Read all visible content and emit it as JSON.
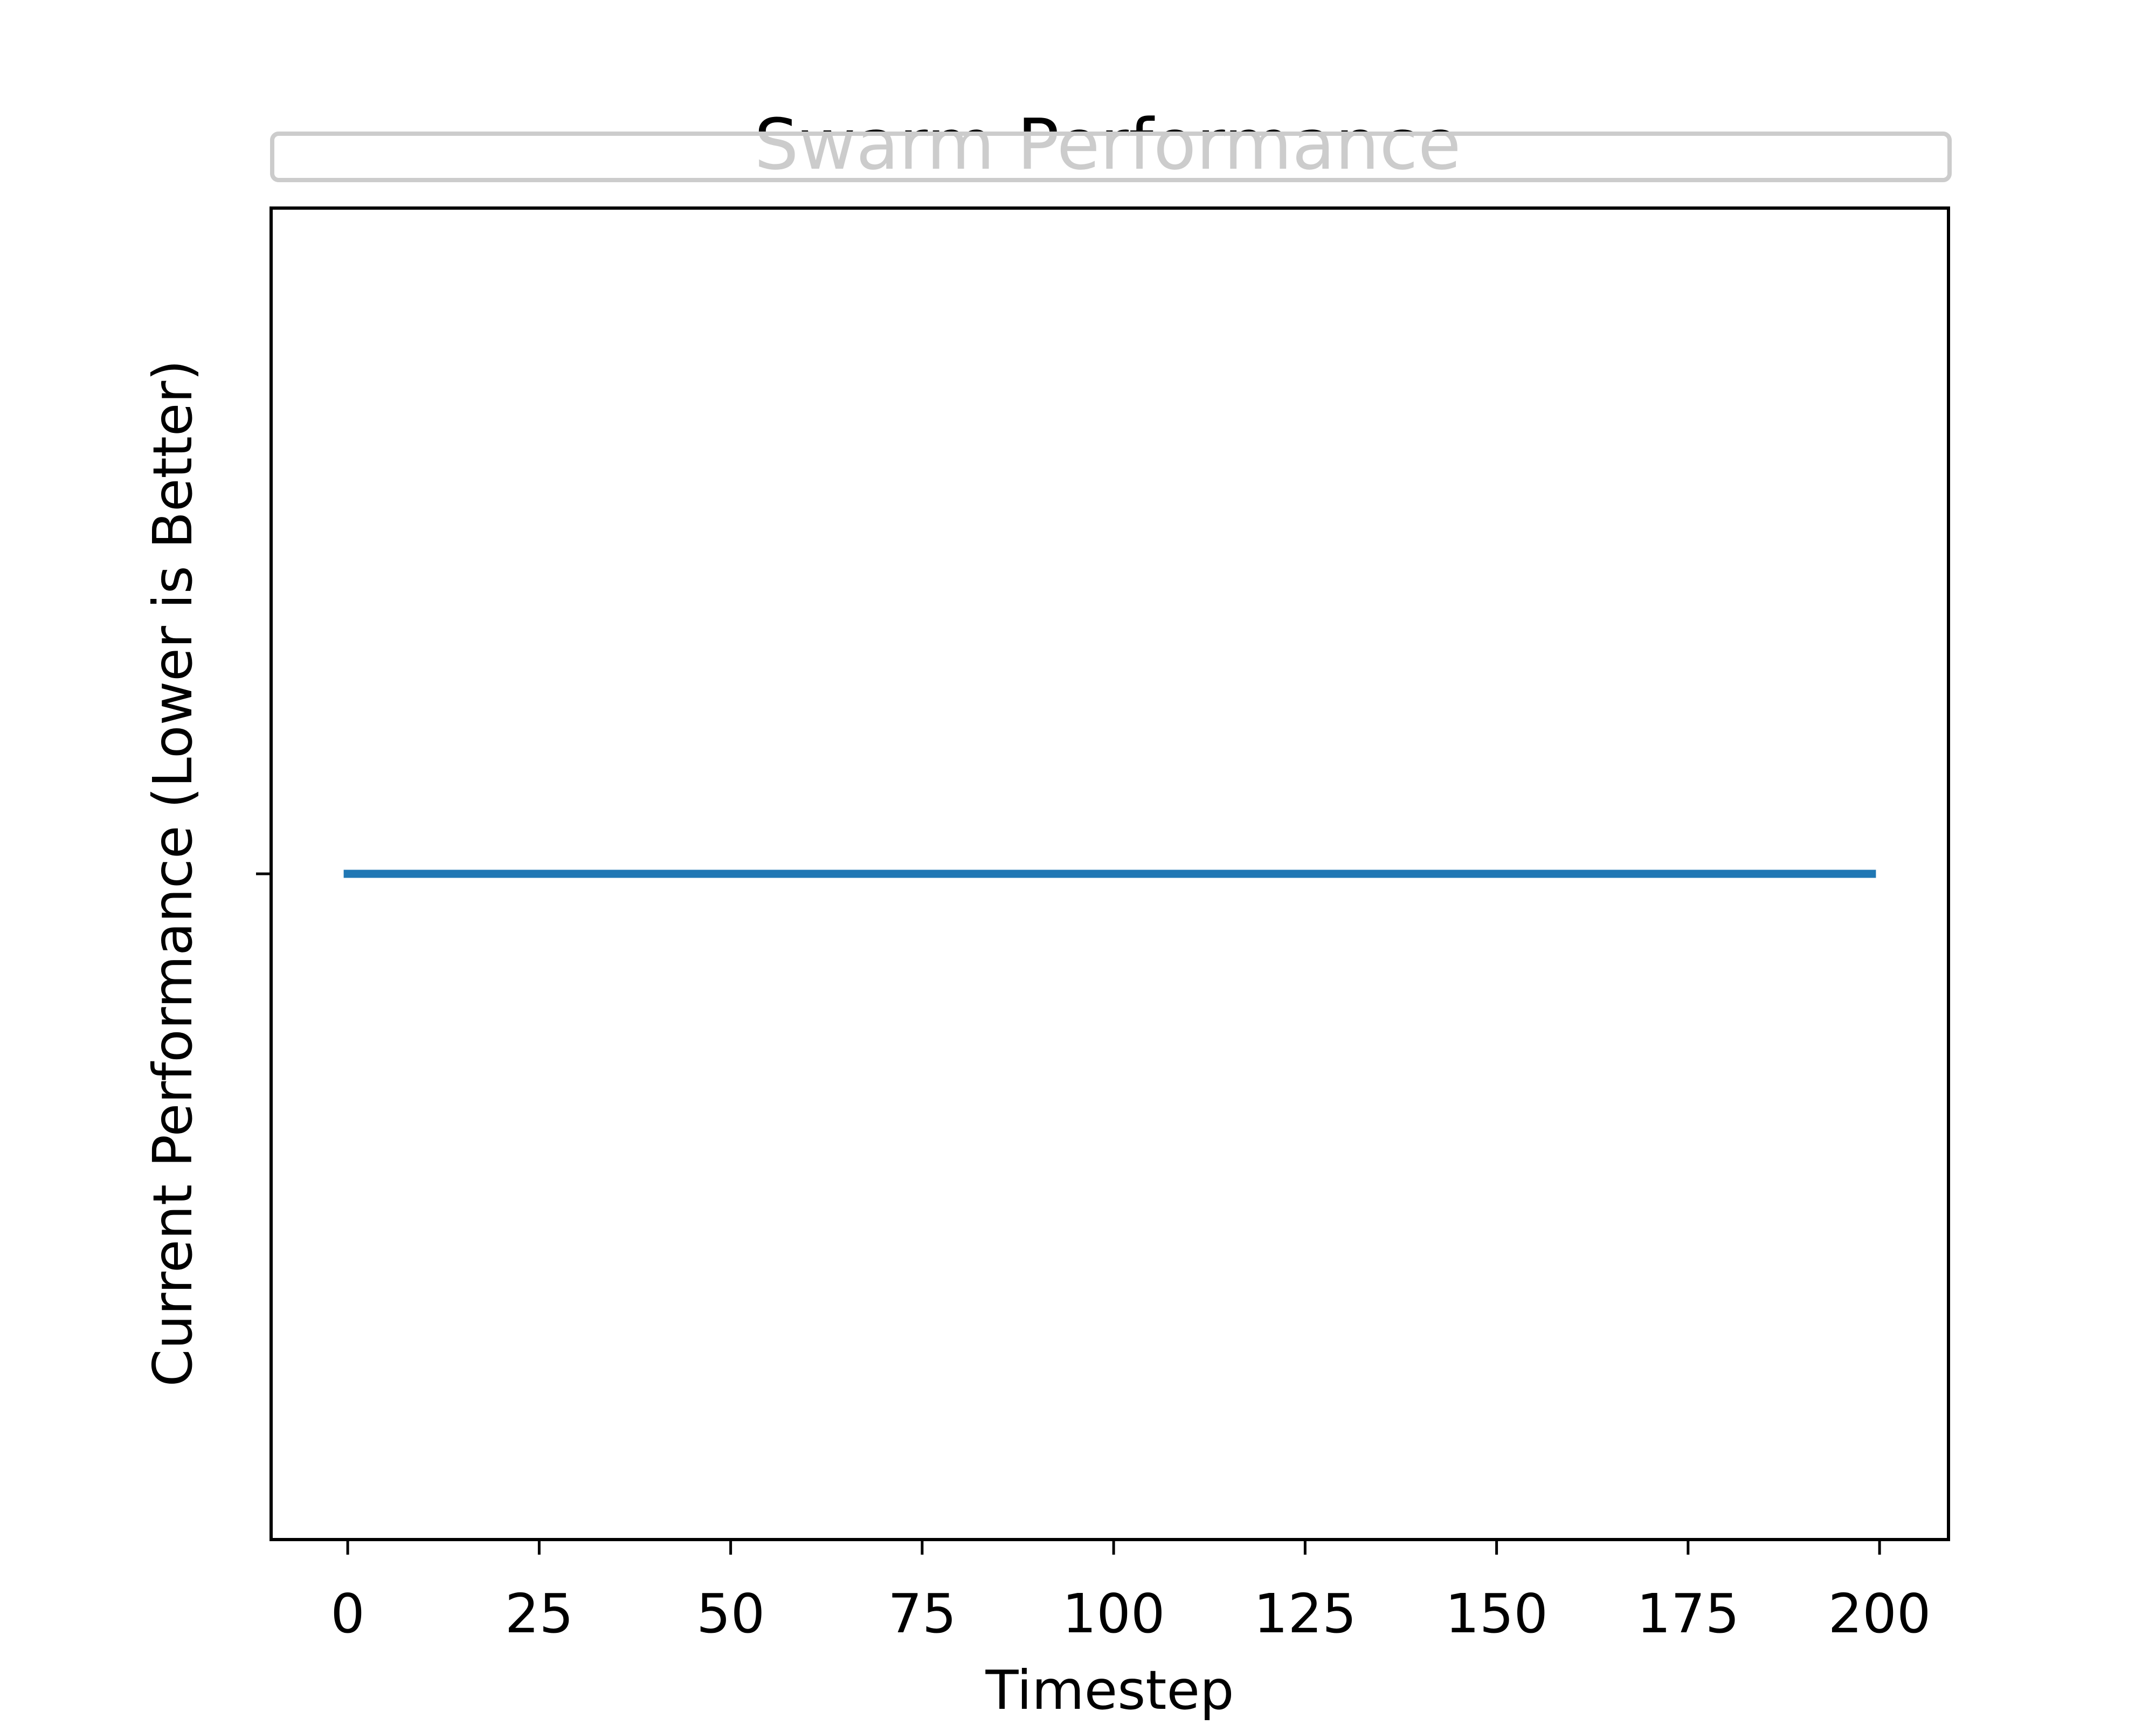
{
  "chart_data": {
    "type": "line",
    "title": "Swarm Performance",
    "xlabel": "Timestep",
    "ylabel": "Current Performance (Lower is Better)",
    "xlim": [
      -10,
      209
    ],
    "x_ticks": [
      0,
      25,
      50,
      75,
      100,
      125,
      150,
      175,
      200
    ],
    "x_tick_labels": [
      "0",
      "25",
      "50",
      "75",
      "100",
      "125",
      "150",
      "175",
      "200"
    ],
    "ylim": [
      -0.055,
      0.055
    ],
    "y_ticks": [
      0
    ],
    "y_tick_labels": [
      ""
    ],
    "grid": false,
    "series": [
      {
        "x": [
          0,
          199
        ],
        "y": [
          0,
          0
        ],
        "color": "#1f77b4"
      }
    ],
    "legend": {
      "placement": "upper center",
      "entries": []
    }
  },
  "colors": {
    "line": "#1f77b4",
    "axes": "#000000",
    "legend_frame": "#cccccc",
    "background": "#ffffff"
  }
}
